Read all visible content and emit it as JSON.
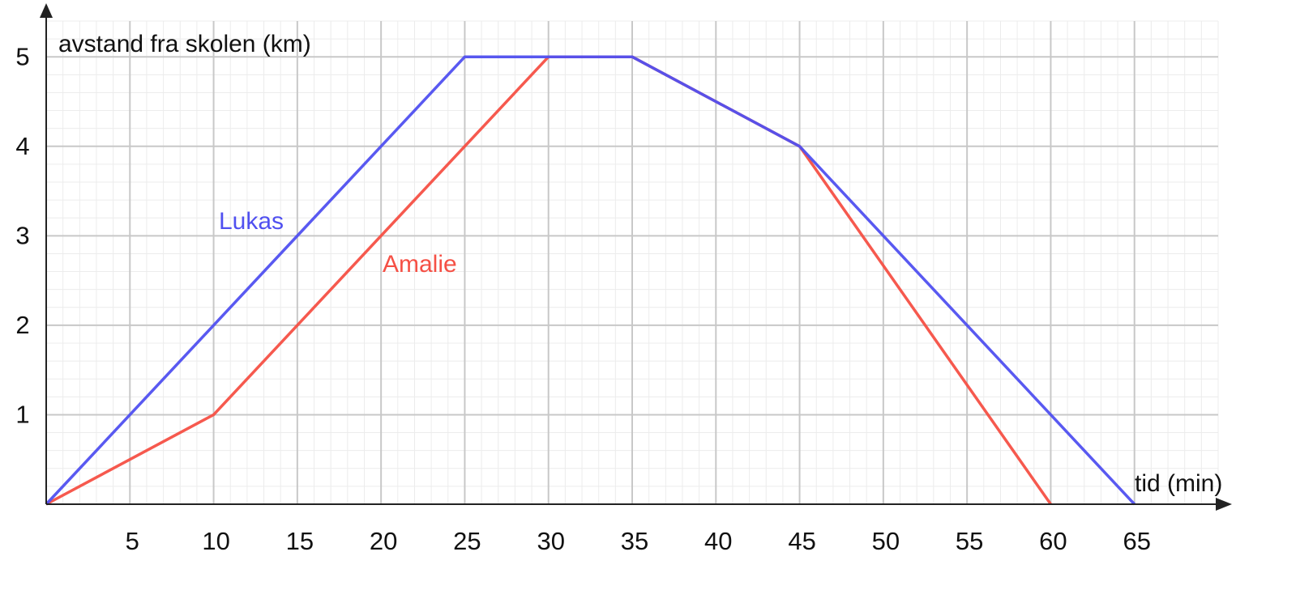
{
  "chart_data": {
    "type": "line",
    "y_label": "avstand fra skolen (km)",
    "x_label": "tid (min)",
    "xlim": [
      0,
      70
    ],
    "ylim": [
      0,
      5.4
    ],
    "xticks": [
      5,
      10,
      15,
      20,
      25,
      30,
      35,
      40,
      45,
      50,
      55,
      60,
      65
    ],
    "yticks": [
      1,
      2,
      3,
      4,
      5
    ],
    "grid": true,
    "series": [
      {
        "name": "Lukas",
        "color": "#5050f0",
        "x": [
          0,
          25,
          35,
          45,
          65
        ],
        "values": [
          0,
          5,
          5,
          4,
          0
        ]
      },
      {
        "name": "Amalie",
        "color": "#f55045",
        "x": [
          0,
          10,
          30,
          35,
          45,
          60
        ],
        "values": [
          0,
          1,
          5,
          5,
          4,
          0
        ]
      }
    ]
  }
}
